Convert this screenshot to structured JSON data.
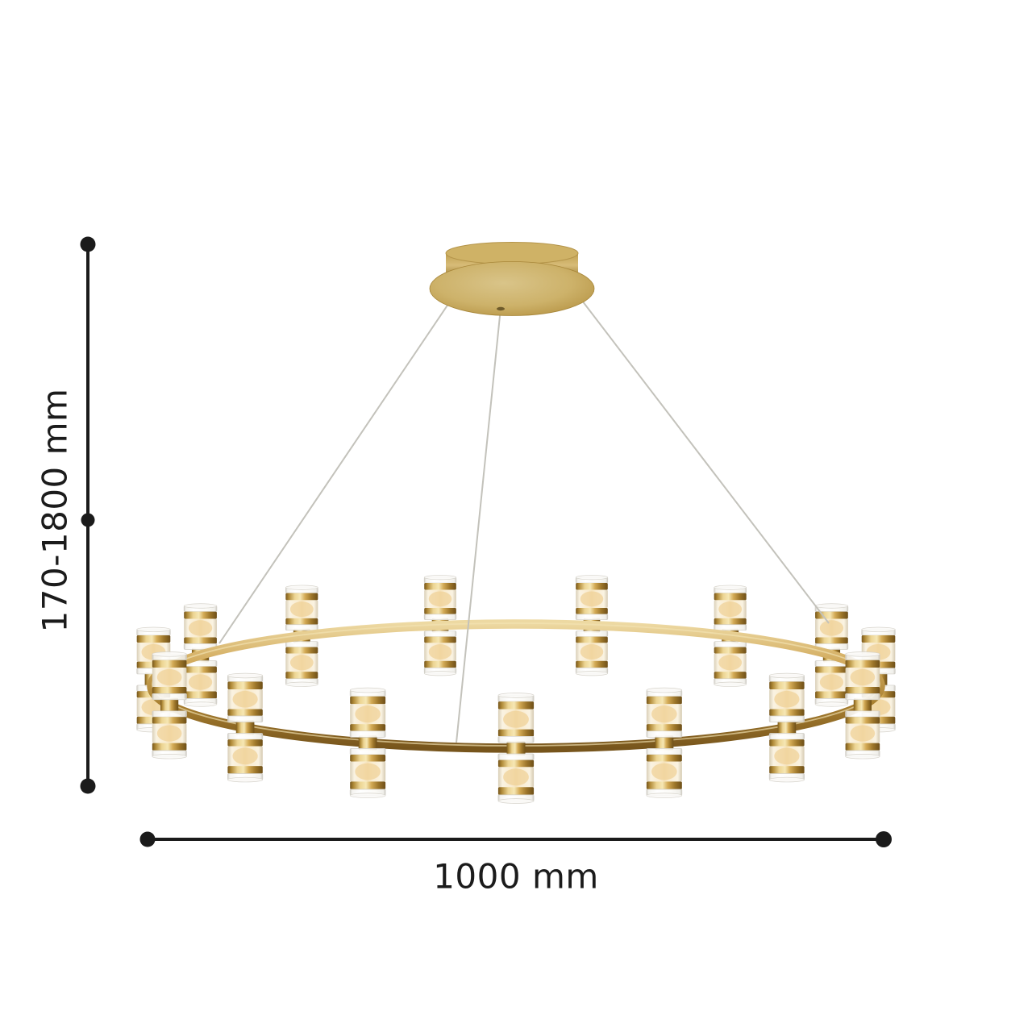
{
  "dimensions": {
    "height_label": "170-1800 mm",
    "width_label": "1000 mm"
  },
  "colors": {
    "line": "#1b1b1b",
    "background": "#ffffff",
    "brass": "#c29c50",
    "brass_dark": "#7c5a1e",
    "brass_light": "#f0dda8",
    "glass": "#e9e7e1",
    "glow": "#f0d49c",
    "cable": "#c3c2bb"
  }
}
